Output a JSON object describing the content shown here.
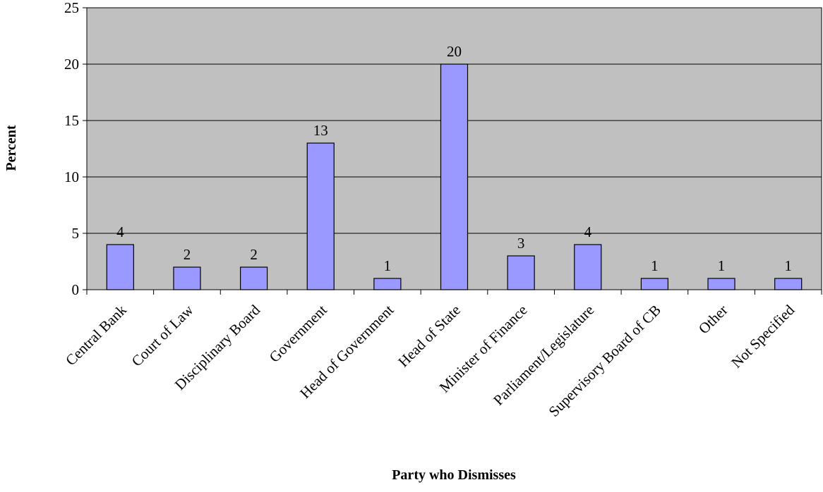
{
  "chart_data": {
    "type": "bar",
    "categories": [
      "Central Bank",
      "Court of Law",
      "Disciplinary Board",
      "Government",
      "Head of Government",
      "Head of State",
      "Minister of Finance",
      "Parliament/Legislature",
      "Supervisory Board of CB",
      "Other",
      "Not Specified"
    ],
    "values": [
      4,
      2,
      2,
      13,
      1,
      20,
      3,
      4,
      1,
      1,
      1
    ],
    "data_labels": [
      "4",
      "2",
      "2",
      "13",
      "1",
      "20",
      "3",
      "4",
      "1",
      "1",
      "1"
    ],
    "title": "",
    "xlabel": "Party who Dismisses",
    "ylabel": "Percent",
    "ylim": [
      0,
      25
    ],
    "yticks": [
      "0",
      "5",
      "10",
      "15",
      "20",
      "25"
    ],
    "grid": true,
    "legend": "none",
    "colors": {
      "bar_fill": "#9999FF",
      "bar_stroke": "#000000",
      "plot_background": "#C0C0C0",
      "gridline": "#000000"
    }
  }
}
